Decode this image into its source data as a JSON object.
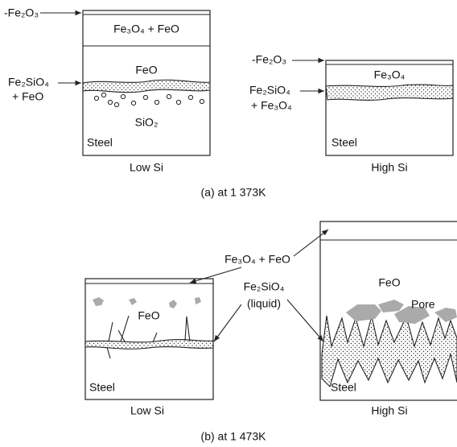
{
  "panel_a": {
    "low_si": {
      "top_oxide": "-Fe₂O₃",
      "layer": "Fe₃O₄ + FeO",
      "feo": "FeO",
      "interface_1": "Fe₂SiO₄",
      "interface_2": "+ FeO",
      "sio2": "SiO₂",
      "steel": "Steel",
      "caption": "Low Si"
    },
    "high_si": {
      "top_oxide": "-Fe₂O₃",
      "layer": "Fe₃O₄",
      "interface_1": "Fe₂SiO₄",
      "interface_2": "+ Fe₃O₄",
      "steel": "Steel",
      "caption": "High Si"
    },
    "caption": "(a) at 1 373K"
  },
  "panel_b": {
    "scale_label": "Fe₃O₄ + FeO",
    "liquid_label_1": "Fe₂SiO₄",
    "liquid_label_2": "(liquid)",
    "low_si": {
      "feo": "FeO",
      "steel": "Steel",
      "caption": "Low Si"
    },
    "high_si": {
      "feo": "FeO",
      "pore": "Pore",
      "steel": "Steel",
      "caption": "High Si"
    },
    "caption": "(b) at 1 473K"
  }
}
